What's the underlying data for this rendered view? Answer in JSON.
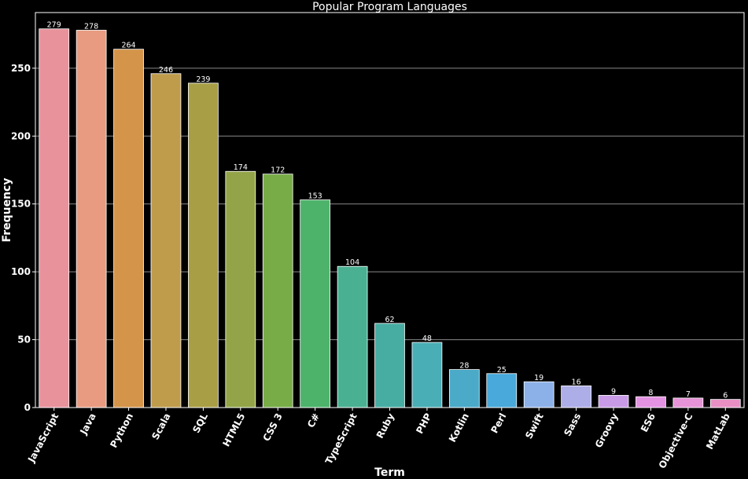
{
  "chart_data": {
    "type": "bar",
    "title": "Popular Program Languages",
    "xlabel": "Term",
    "ylabel": "Frequency",
    "ylim": [
      0,
      291
    ],
    "yticks": [
      0,
      50,
      100,
      150,
      200,
      250
    ],
    "grid": true,
    "categories": [
      "JavaScript",
      "Java",
      "Python",
      "Scala",
      "SQL",
      "HTML5",
      "CSS 3",
      "C#",
      "TypeScript",
      "Ruby",
      "PHP",
      "Kotlin",
      "Perl",
      "Swift",
      "Sass",
      "Groovy",
      "ES6",
      "Objective-C",
      "MatLab"
    ],
    "values": [
      279,
      278,
      264,
      246,
      239,
      174,
      172,
      153,
      104,
      62,
      48,
      28,
      25,
      19,
      16,
      9,
      8,
      7,
      6
    ],
    "colors": [
      "#e8929c",
      "#e89b80",
      "#d4954a",
      "#bf9b4c",
      "#a89e45",
      "#92a447",
      "#77ac47",
      "#4db36a",
      "#4ab092",
      "#47ada2",
      "#49aeb6",
      "#4aaac8",
      "#48a9da",
      "#8cb1e8",
      "#adade8",
      "#c99be6",
      "#e393e2",
      "#e693d7",
      "#e88fc4"
    ]
  }
}
